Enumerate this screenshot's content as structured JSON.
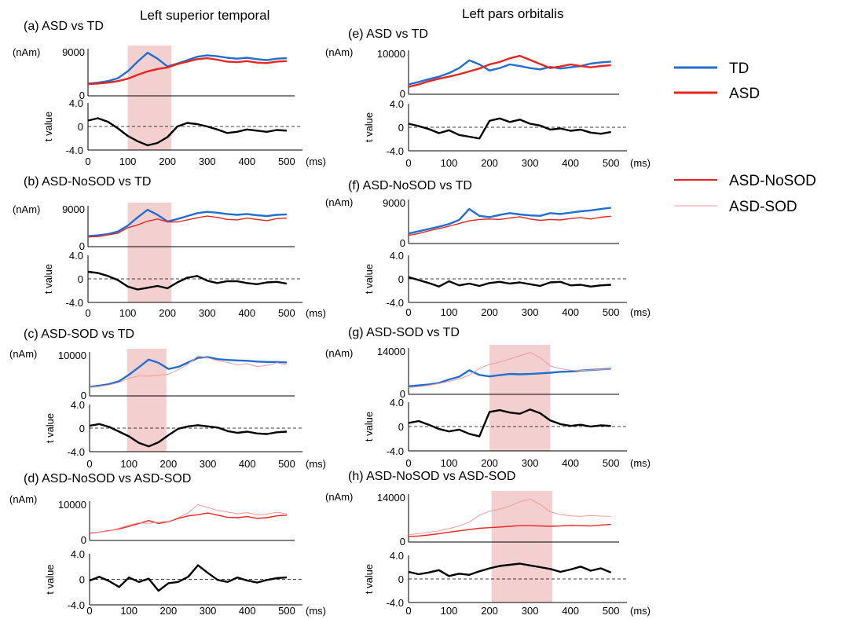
{
  "column_titles": {
    "left": "Left superior temporal",
    "right": "Left pars orbitalis"
  },
  "legend": {
    "groups": [
      [
        {
          "label": "TD",
          "color": "#1f6fd1",
          "width": 3
        },
        {
          "label": "ASD",
          "color": "#e8251e",
          "width": 3
        }
      ],
      [
        {
          "label": "ASD-NoSOD",
          "color": "#e8251e",
          "width": 2
        },
        {
          "label": "ASD-SOD",
          "color": "#f39b98",
          "width": 1
        }
      ]
    ]
  },
  "colors": {
    "TD": "#1f6fd1",
    "ASD": "#e8251e",
    "ASD-NoSOD": "#e8251e",
    "ASD-SOD": "#f39b98",
    "t": "#000000",
    "highlight": "#f2c7c7"
  },
  "units": {
    "amp": "(nAm)",
    "t": "t value",
    "time": "(ms)"
  },
  "chart_data": [
    {
      "id": "a",
      "title": "(a) ASD vs TD",
      "type": "line",
      "x": [
        0,
        25,
        50,
        75,
        100,
        125,
        150,
        175,
        200,
        225,
        250,
        275,
        300,
        325,
        350,
        375,
        400,
        425,
        450,
        475,
        500
      ],
      "xticks": [
        "0",
        "100",
        "200",
        "300",
        "400",
        "500"
      ],
      "xlim": [
        0,
        520
      ],
      "amp": {
        "ylim": [
          0,
          9000
        ],
        "yticks": [
          "0",
          "9000"
        ],
        "series": [
          {
            "name": "TD",
            "values": [
              2500,
              2700,
              3000,
              3600,
              5000,
              7000,
              8800,
              7600,
              6000,
              6600,
              7300,
              8000,
              8300,
              8100,
              7800,
              7600,
              7800,
              7500,
              7300,
              7600,
              7700
            ]
          },
          {
            "name": "ASD",
            "values": [
              2400,
              2500,
              2700,
              3000,
              3500,
              4300,
              5000,
              5500,
              5800,
              6500,
              7000,
              7500,
              7700,
              7400,
              7000,
              6900,
              7100,
              6800,
              6700,
              7000,
              7100
            ]
          }
        ]
      },
      "t": {
        "ylim": [
          -4,
          4
        ],
        "yticks": [
          "4.0",
          "0",
          "-4.0"
        ],
        "values": [
          1.0,
          1.4,
          0.8,
          -0.3,
          -1.6,
          -2.5,
          -3.2,
          -2.8,
          -1.8,
          0.0,
          0.6,
          0.4,
          0.0,
          -0.5,
          -1.1,
          -0.9,
          -0.5,
          -0.7,
          -0.9,
          -0.6,
          -0.7
        ]
      },
      "highlight": [
        100,
        210
      ]
    },
    {
      "id": "b",
      "title": "(b) ASD-NoSOD vs TD",
      "type": "line",
      "x": [
        0,
        25,
        50,
        75,
        100,
        125,
        150,
        175,
        200,
        225,
        250,
        275,
        300,
        325,
        350,
        375,
        400,
        425,
        450,
        475,
        500
      ],
      "xticks": [
        "0",
        "100",
        "200",
        "300",
        "400",
        "500"
      ],
      "xlim": [
        0,
        520
      ],
      "amp": {
        "ylim": [
          0,
          9000
        ],
        "yticks": [
          "0",
          "9000"
        ],
        "series": [
          {
            "name": "TD",
            "values": [
              2500,
              2700,
              3000,
              3600,
              5000,
              7000,
              8800,
              7600,
              6000,
              6600,
              7300,
              8000,
              8300,
              8100,
              7800,
              7600,
              7800,
              7500,
              7300,
              7600,
              7700
            ]
          },
          {
            "name": "ASD-NoSOD",
            "values": [
              2300,
              2400,
              2800,
              3200,
              4500,
              5200,
              6100,
              6600,
              5900,
              5900,
              6400,
              6900,
              7300,
              7000,
              6500,
              6400,
              6800,
              6500,
              6200,
              6700,
              6800
            ]
          }
        ]
      },
      "t": {
        "ylim": [
          -4,
          4
        ],
        "yticks": [
          "4.0",
          "0",
          "-4.0"
        ],
        "values": [
          1.2,
          1.0,
          0.5,
          -0.2,
          -1.3,
          -1.8,
          -1.5,
          -1.2,
          -1.6,
          -0.6,
          0.2,
          0.5,
          -0.3,
          -0.7,
          -0.4,
          -0.4,
          -0.7,
          -0.9,
          -0.6,
          -0.5,
          -0.8
        ]
      },
      "highlight": [
        100,
        210
      ]
    },
    {
      "id": "c",
      "title": "(c) ASD-SOD vs TD",
      "type": "line",
      "x": [
        0,
        25,
        50,
        75,
        100,
        125,
        150,
        175,
        200,
        225,
        250,
        275,
        300,
        325,
        350,
        375,
        400,
        425,
        450,
        475,
        500
      ],
      "xticks": [
        "0",
        "100",
        "200",
        "300",
        "400",
        "500"
      ],
      "xlim": [
        0,
        520
      ],
      "amp": {
        "ylim": [
          0,
          10000
        ],
        "yticks": [
          "0",
          "10000"
        ],
        "series": [
          {
            "name": "TD",
            "values": [
              2200,
              2500,
              2900,
              3600,
              5200,
              7000,
              8900,
              8100,
              6600,
              7100,
              8200,
              9300,
              9500,
              9000,
              8800,
              8700,
              8600,
              8400,
              8300,
              8300,
              8200
            ]
          },
          {
            "name": "ASD-SOD",
            "values": [
              2100,
              2300,
              2700,
              3300,
              4300,
              4900,
              4800,
              5100,
              5300,
              6400,
              7800,
              9800,
              9300,
              8600,
              8200,
              7600,
              7900,
              7200,
              7500,
              8100,
              7600
            ]
          }
        ]
      },
      "t": {
        "ylim": [
          -4,
          4
        ],
        "yticks": [
          "4.0",
          "0",
          "-4.0"
        ],
        "values": [
          0.4,
          0.7,
          0.2,
          -0.6,
          -1.4,
          -2.5,
          -3.1,
          -2.4,
          -1.2,
          -0.1,
          0.3,
          0.5,
          0.3,
          0.1,
          -0.5,
          -0.8,
          -0.6,
          -0.9,
          -1.0,
          -0.7,
          -0.6
        ]
      },
      "highlight": [
        95,
        195
      ]
    },
    {
      "id": "d",
      "title": "(d) ASD-NoSOD vs ASD-SOD",
      "type": "line",
      "x": [
        0,
        25,
        50,
        75,
        100,
        125,
        150,
        175,
        200,
        225,
        250,
        275,
        300,
        325,
        350,
        375,
        400,
        425,
        450,
        475,
        500
      ],
      "xticks": [
        "0",
        "100",
        "200",
        "300",
        "400",
        "500"
      ],
      "xlim": [
        0,
        520
      ],
      "amp": {
        "ylim": [
          0,
          10000
        ],
        "yticks": [
          "0",
          "10000"
        ],
        "series": [
          {
            "name": "ASD-NoSOD",
            "values": [
              2000,
              2300,
              2700,
              3200,
              3900,
              4700,
              5500,
              4700,
              5200,
              6100,
              6800,
              7100,
              7600,
              7000,
              6400,
              6300,
              6600,
              6100,
              6300,
              6800,
              7000
            ]
          },
          {
            "name": "ASD-SOD",
            "values": [
              2100,
              2300,
              2600,
              3400,
              4300,
              4900,
              4700,
              5100,
              5300,
              6300,
              7600,
              9900,
              9100,
              8300,
              7900,
              7400,
              7700,
              7100,
              7300,
              7800,
              7400
            ]
          }
        ]
      },
      "t": {
        "ylim": [
          -4,
          4
        ],
        "yticks": [
          "4.0",
          "0",
          "-4.0"
        ],
        "values": [
          -0.2,
          0.4,
          -0.3,
          -1.2,
          0.3,
          -0.4,
          0.1,
          -1.8,
          -0.6,
          -0.4,
          0.4,
          2.2,
          1.0,
          -0.1,
          -0.4,
          0.3,
          -0.2,
          -0.5,
          -0.1,
          0.2,
          0.3
        ]
      },
      "highlight": null
    },
    {
      "id": "e",
      "title": "(e) ASD vs TD",
      "type": "line",
      "x": [
        0,
        25,
        50,
        75,
        100,
        125,
        150,
        175,
        200,
        225,
        250,
        275,
        300,
        325,
        350,
        375,
        400,
        425,
        450,
        475,
        500
      ],
      "xticks": [
        "0",
        "100",
        "200",
        "300",
        "400",
        "500"
      ],
      "xlim": [
        0,
        520
      ],
      "amp": {
        "ylim": [
          0,
          10000
        ],
        "yticks": [
          "0",
          "10000"
        ],
        "series": [
          {
            "name": "TD",
            "values": [
              2400,
              3000,
              3700,
              4300,
              5200,
              6400,
              8300,
              7300,
              5800,
              6400,
              7300,
              6900,
              6400,
              6100,
              6700,
              6300,
              6600,
              6900,
              7500,
              7800,
              8000
            ]
          },
          {
            "name": "ASD",
            "values": [
              1800,
              2400,
              3200,
              3800,
              4300,
              4900,
              5600,
              6300,
              7300,
              7900,
              8800,
              9400,
              8400,
              7400,
              6400,
              6800,
              7300,
              6900,
              6600,
              6900,
              7100
            ]
          }
        ]
      },
      "t": {
        "ylim": [
          -4,
          4
        ],
        "yticks": [
          "4.0",
          "0",
          "-4.0"
        ],
        "values": [
          0.6,
          0.2,
          -0.3,
          -1.0,
          -0.5,
          -1.3,
          -1.6,
          -1.9,
          1.1,
          1.5,
          0.9,
          1.3,
          0.6,
          0.3,
          -0.4,
          -0.2,
          -0.6,
          -0.4,
          -0.9,
          -1.1,
          -0.8
        ]
      },
      "highlight": null
    },
    {
      "id": "f",
      "title": "(f) ASD-NoSOD vs TD",
      "type": "line",
      "x": [
        0,
        25,
        50,
        75,
        100,
        125,
        150,
        175,
        200,
        225,
        250,
        275,
        300,
        325,
        350,
        375,
        400,
        425,
        450,
        475,
        500
      ],
      "xticks": [
        "0",
        "100",
        "200",
        "300",
        "400",
        "500"
      ],
      "xlim": [
        0,
        520
      ],
      "amp": {
        "ylim": [
          0,
          9000
        ],
        "yticks": [
          "0",
          "9000"
        ],
        "series": [
          {
            "name": "TD",
            "values": [
              2200,
              2700,
              3200,
              3700,
              4300,
              5200,
              7600,
              6100,
              5800,
              6300,
              6700,
              6400,
              6200,
              6100,
              6700,
              6500,
              6800,
              7100,
              7300,
              7600,
              7900
            ]
          },
          {
            "name": "ASD-NoSOD",
            "values": [
              1800,
              2200,
              2800,
              3300,
              3800,
              4400,
              5000,
              5300,
              5400,
              5300,
              5600,
              5900,
              5400,
              5100,
              5300,
              5200,
              5500,
              5700,
              5400,
              5800,
              6000
            ]
          }
        ]
      },
      "t": {
        "ylim": [
          -4,
          4
        ],
        "yticks": [
          "4.0",
          "0",
          "-4.0"
        ],
        "values": [
          0.3,
          -0.2,
          -0.7,
          -1.3,
          -0.4,
          -1.1,
          -0.8,
          -1.2,
          -0.7,
          -0.5,
          -0.8,
          -0.6,
          -0.9,
          -1.2,
          -0.6,
          -0.5,
          -1.1,
          -1.0,
          -1.3,
          -1.1,
          -1.0
        ]
      },
      "highlight": null
    },
    {
      "id": "g",
      "title": "(g) ASD-SOD vs TD",
      "type": "line",
      "x": [
        0,
        25,
        50,
        75,
        100,
        125,
        150,
        175,
        200,
        225,
        250,
        275,
        300,
        325,
        350,
        375,
        400,
        425,
        450,
        475,
        500
      ],
      "xticks": [
        "0",
        "100",
        "200",
        "300",
        "400",
        "500"
      ],
      "xlim": [
        0,
        520
      ],
      "amp": {
        "ylim": [
          0,
          14000
        ],
        "yticks": [
          "0",
          "14000"
        ],
        "series": [
          {
            "name": "TD",
            "values": [
              2600,
              2900,
              3200,
              3700,
              4800,
              5700,
              7800,
              6300,
              5800,
              6200,
              6600,
              6500,
              6600,
              6800,
              7000,
              7300,
              7400,
              7700,
              7900,
              8100,
              8300
            ]
          },
          {
            "name": "ASD-SOD",
            "values": [
              2200,
              2500,
              2900,
              3500,
              4200,
              5000,
              6200,
              8400,
              9700,
              10500,
              11400,
              12500,
              13600,
              11900,
              9200,
              8300,
              7800,
              7700,
              7900,
              8100,
              8200
            ]
          }
        ]
      },
      "t": {
        "ylim": [
          -4,
          4
        ],
        "yticks": [
          "4.0",
          "0",
          "-4.0"
        ],
        "values": [
          0.6,
          0.9,
          0.3,
          -0.4,
          -0.8,
          -0.5,
          -1.2,
          -1.6,
          2.4,
          2.7,
          2.3,
          2.1,
          2.8,
          2.2,
          1.0,
          0.4,
          0.1,
          0.3,
          0.0,
          0.2,
          0.1
        ]
      },
      "highlight": [
        200,
        350
      ]
    },
    {
      "id": "h",
      "title": "(h) ASD-NoSOD vs ASD-SOD",
      "type": "line",
      "x": [
        0,
        25,
        50,
        75,
        100,
        125,
        150,
        175,
        200,
        225,
        250,
        275,
        300,
        325,
        350,
        375,
        400,
        425,
        450,
        475,
        500
      ],
      "xticks": [
        "0",
        "100",
        "200",
        "300",
        "400",
        "500"
      ],
      "xlim": [
        0,
        520
      ],
      "amp": {
        "ylim": [
          0,
          14000
        ],
        "yticks": [
          "0",
          "14000"
        ],
        "series": [
          {
            "name": "ASD-NoSOD",
            "values": [
              1700,
              1900,
              2200,
              2600,
              3100,
              3500,
              3900,
              4300,
              4500,
              4700,
              4900,
              5100,
              5100,
              5000,
              4900,
              5000,
              5200,
              5100,
              5000,
              5300,
              5500
            ]
          },
          {
            "name": "ASD-SOD",
            "values": [
              2300,
              2600,
              3000,
              3500,
              4200,
              5000,
              6200,
              8400,
              9600,
              10300,
              11200,
              12600,
              13400,
              11800,
              9400,
              8600,
              8200,
              8000,
              8300,
              8100,
              8000
            ]
          }
        ]
      },
      "t": {
        "ylim": [
          -4,
          4
        ],
        "yticks": [
          "4.0",
          "0",
          "-4.0"
        ],
        "values": [
          1.2,
          0.8,
          1.1,
          1.5,
          0.5,
          0.9,
          0.7,
          1.3,
          1.8,
          2.2,
          2.4,
          2.6,
          2.3,
          2.0,
          1.7,
          1.2,
          1.6,
          2.1,
          1.4,
          1.8,
          1.1
        ]
      },
      "highlight": [
        205,
        355
      ]
    }
  ]
}
